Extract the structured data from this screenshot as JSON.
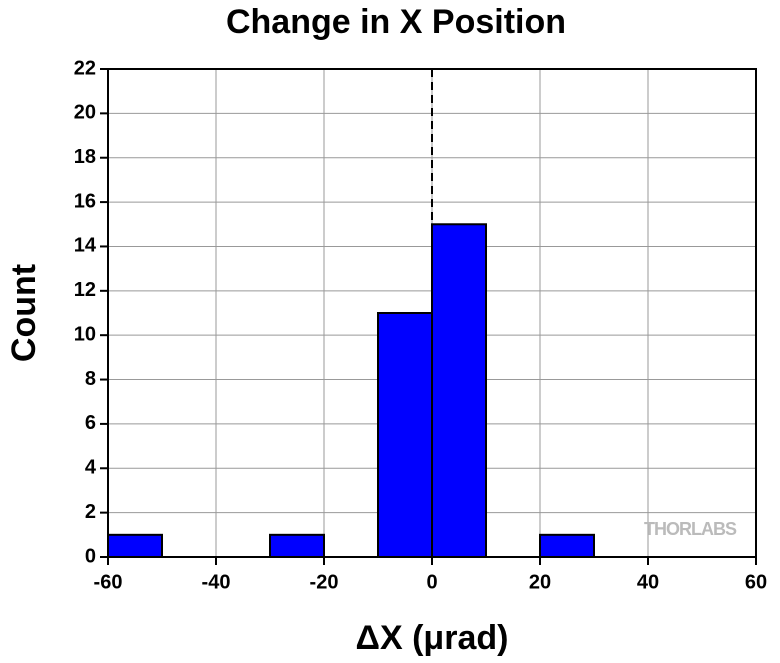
{
  "chart_data": {
    "type": "histogram",
    "title": "Change in X Position",
    "x_label": "ΔX (μrad)",
    "y_label": "Count",
    "bins": [
      -60,
      -50,
      -40,
      -30,
      -20,
      -10,
      0,
      10,
      20,
      30
    ],
    "values": [
      1,
      0,
      0,
      1,
      0,
      11,
      15,
      0,
      1
    ],
    "color": "#0000ff",
    "xlim": [
      -60,
      60
    ],
    "xticks": [
      -60,
      -40,
      -20,
      0,
      20,
      40,
      60
    ],
    "ylim": [
      0,
      22
    ],
    "yticks": [
      0,
      2,
      4,
      6,
      8,
      10,
      12,
      14,
      16,
      18,
      20,
      22
    ],
    "grid": true,
    "reference_line_x": 0,
    "watermark": "THORLABS"
  }
}
